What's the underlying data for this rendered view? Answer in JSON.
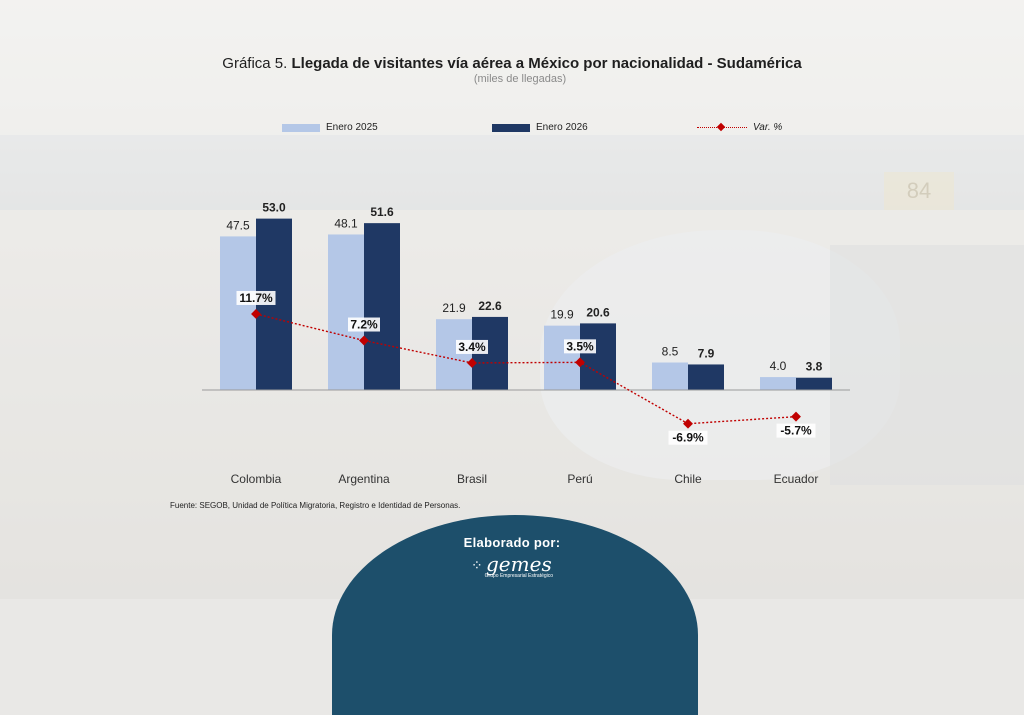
{
  "title_prefix": "Gráfica 5. ",
  "title_bold": "Llegada de visitantes vía aérea a México por nacionalidad - Sudamérica",
  "subtitle": "(miles de llegadas)",
  "background_sign": "84",
  "legend": {
    "series1": "Enero 2025",
    "series2": "Enero 2026",
    "line": "Var. %"
  },
  "source": "Fuente: SEGOB, Unidad de Política Migratoria, Registro e Identidad de Personas.",
  "credit": {
    "label": "Elaborado por:",
    "logo_name": "gemes",
    "logo_tag": "Grupo Empresarial Estratégico"
  },
  "colors": {
    "series1": "#b4c7e7",
    "series2": "#1f3864",
    "line": "#c00000",
    "credit_bg": "#1d4f6b"
  },
  "chart_data": {
    "type": "bar",
    "title": "Gráfica 5. Llegada de visitantes vía aérea a México por nacionalidad - Sudamérica",
    "subtitle": "(miles de llegadas)",
    "xlabel": "",
    "ylabel": "",
    "categories": [
      "Colombia",
      "Argentina",
      "Brasil",
      "Perú",
      "Chile",
      "Ecuador"
    ],
    "series": [
      {
        "name": "Enero 2025",
        "type": "bar",
        "values": [
          47.5,
          48.1,
          21.9,
          19.9,
          8.5,
          4.0
        ],
        "labels": [
          "47.5",
          "48.1",
          "21.9",
          "19.9",
          "8.5",
          "4.0"
        ]
      },
      {
        "name": "Enero 2026",
        "type": "bar",
        "values": [
          53.0,
          51.6,
          22.6,
          20.6,
          7.9,
          3.8
        ],
        "labels": [
          "53.0",
          "51.6",
          "22.6",
          "20.6",
          "7.9",
          "3.8"
        ]
      },
      {
        "name": "Var. %",
        "type": "line",
        "axis": "secondary",
        "values": [
          11.7,
          7.2,
          3.4,
          3.5,
          -6.9,
          -5.7
        ],
        "labels": [
          "11.7%",
          "7.2%",
          "3.4%",
          "3.5%",
          "-6.9%",
          "-5.7%"
        ]
      }
    ],
    "ylim": [
      0,
      55
    ],
    "y2lim": [
      -15,
      30
    ],
    "grid": false,
    "legend_position": "top"
  }
}
